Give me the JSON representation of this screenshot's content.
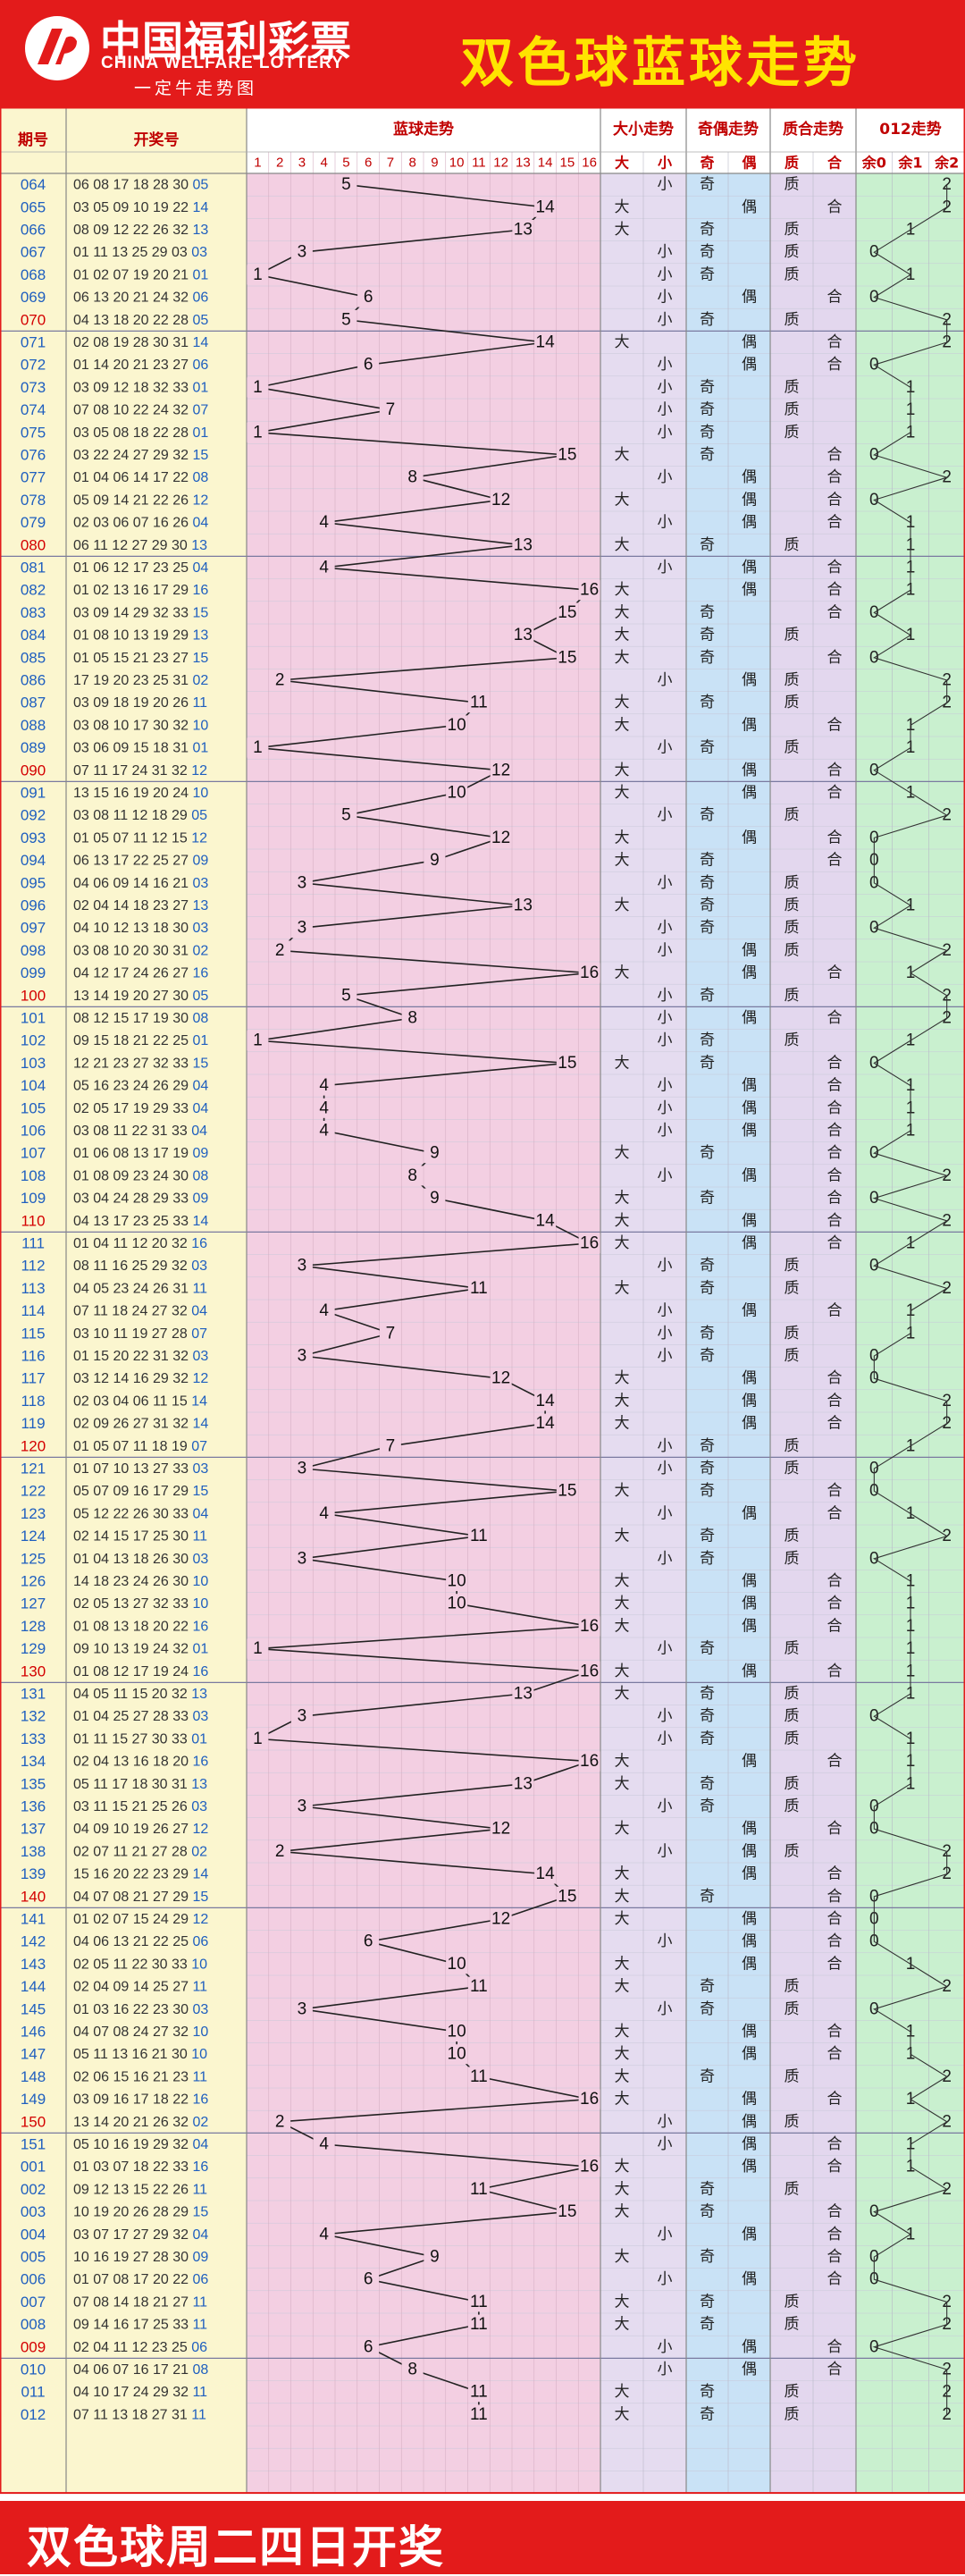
{
  "header": {
    "logo_cn": "中国福利彩票",
    "logo_en": "CHINA WELFARE LOTTERY",
    "logo_sub": "一定牛走势图",
    "title": "双色球蓝球走势"
  },
  "footer": {
    "text": "双色球周二四日开奖"
  },
  "colors": {
    "brand_red": "#e31b1b",
    "title_yellow": "#ffe400",
    "issue_blue": "#1f5fbf",
    "issue_red": "#d40000",
    "pink_bg": "#f3cfe2",
    "lavender_bg": "#e5dcf0",
    "blue_bg": "#c9e2f6",
    "purple_bg": "#e3d7ee",
    "green_bg": "#c9f0cf",
    "yellow_bg": "#fbf6cf"
  },
  "chart_data": {
    "type": "table",
    "columns": {
      "issue": "期号",
      "draw": "开奖号",
      "blue_trend": "蓝球走势",
      "size_trend": "大小走势",
      "parity_trend": "奇偶走势",
      "prime_trend": "质合走势",
      "mod3_trend": "012走势"
    },
    "blue_ball_numbers": [
      "1",
      "2",
      "3",
      "4",
      "5",
      "6",
      "7",
      "8",
      "9",
      "10",
      "11",
      "12",
      "13",
      "14",
      "15",
      "16"
    ],
    "sub_headers": {
      "size": [
        "大",
        "小"
      ],
      "parity": [
        "奇",
        "偶"
      ],
      "prime": [
        "质",
        "合"
      ],
      "mod3": [
        "余0",
        "余1",
        "余2"
      ]
    },
    "rows": [
      {
        "issue": "064",
        "reds": "06 08 17 18 28 30",
        "blue": 5
      },
      {
        "issue": "065",
        "reds": "03 05 09 10 19 22",
        "blue": 14
      },
      {
        "issue": "066",
        "reds": "08 09 12 22 26 32",
        "blue": 13
      },
      {
        "issue": "067",
        "reds": "01 11 13 25 29 03",
        "blue": 3
      },
      {
        "issue": "068",
        "reds": "01 02 07 19 20 21",
        "blue": 1
      },
      {
        "issue": "069",
        "reds": "06 13 20 21 24 32",
        "blue": 6
      },
      {
        "issue": "070",
        "reds": "04 13 18 20 22 28",
        "blue": 5
      },
      {
        "issue": "071",
        "reds": "02 08 19 28 30 31",
        "blue": 14
      },
      {
        "issue": "072",
        "reds": "01 14 20 21 23 27",
        "blue": 6
      },
      {
        "issue": "073",
        "reds": "03 09 12 18 32 33",
        "blue": 1
      },
      {
        "issue": "074",
        "reds": "07 08 10 22 24 32",
        "blue": 7
      },
      {
        "issue": "075",
        "reds": "03 05 08 18 22 28",
        "blue": 1
      },
      {
        "issue": "076",
        "reds": "03 22 24 27 29 32",
        "blue": 15
      },
      {
        "issue": "077",
        "reds": "01 04 06 14 17 22",
        "blue": 8
      },
      {
        "issue": "078",
        "reds": "05 09 14 21 22 26",
        "blue": 12
      },
      {
        "issue": "079",
        "reds": "02 03 06 07 16 26",
        "blue": 4
      },
      {
        "issue": "080",
        "reds": "06 11 12 27 29 30",
        "blue": 13
      },
      {
        "issue": "081",
        "reds": "01 06 12 17 23 25",
        "blue": 4
      },
      {
        "issue": "082",
        "reds": "01 02 13 16 17 29",
        "blue": 16
      },
      {
        "issue": "083",
        "reds": "03 09 14 29 32 33",
        "blue": 15
      },
      {
        "issue": "084",
        "reds": "01 08 10 13 19 29",
        "blue": 13
      },
      {
        "issue": "085",
        "reds": "01 05 15 21 23 27",
        "blue": 15
      },
      {
        "issue": "086",
        "reds": "17 19 20 23 25 31",
        "blue": 2
      },
      {
        "issue": "087",
        "reds": "03 09 18 19 20 26",
        "blue": 11
      },
      {
        "issue": "088",
        "reds": "03 08 10 17 30 32",
        "blue": 10
      },
      {
        "issue": "089",
        "reds": "03 06 09 15 18 31",
        "blue": 1
      },
      {
        "issue": "090",
        "reds": "07 11 17 24 31 32",
        "blue": 12
      },
      {
        "issue": "091",
        "reds": "13 15 16 19 20 24",
        "blue": 10
      },
      {
        "issue": "092",
        "reds": "03 08 11 12 18 29",
        "blue": 5
      },
      {
        "issue": "093",
        "reds": "01 05 07 11 12 15",
        "blue": 12
      },
      {
        "issue": "094",
        "reds": "06 13 17 22 25 27",
        "blue": 9
      },
      {
        "issue": "095",
        "reds": "04 06 09 14 16 21",
        "blue": 3
      },
      {
        "issue": "096",
        "reds": "02 04 14 18 23 27",
        "blue": 13
      },
      {
        "issue": "097",
        "reds": "04 10 12 13 18 30",
        "blue": 3
      },
      {
        "issue": "098",
        "reds": "03 08 10 20 30 31",
        "blue": 2
      },
      {
        "issue": "099",
        "reds": "04 12 17 24 26 27",
        "blue": 16
      },
      {
        "issue": "100",
        "reds": "13 14 19 20 27 30",
        "blue": 5
      },
      {
        "issue": "101",
        "reds": "08 12 15 17 19 30",
        "blue": 8
      },
      {
        "issue": "102",
        "reds": "09 15 18 21 22 25",
        "blue": 1
      },
      {
        "issue": "103",
        "reds": "12 21 23 27 32 33",
        "blue": 15
      },
      {
        "issue": "104",
        "reds": "05 16 23 24 26 29",
        "blue": 4
      },
      {
        "issue": "105",
        "reds": "02 05 17 19 29 33",
        "blue": 4
      },
      {
        "issue": "106",
        "reds": "03 08 11 22 31 33",
        "blue": 4
      },
      {
        "issue": "107",
        "reds": "01 06 08 13 17 19",
        "blue": 9
      },
      {
        "issue": "108",
        "reds": "01 08 09 23 24 30",
        "blue": 8
      },
      {
        "issue": "109",
        "reds": "03 04 24 28 29 33",
        "blue": 9
      },
      {
        "issue": "110",
        "reds": "04 13 17 23 25 33",
        "blue": 14
      },
      {
        "issue": "111",
        "reds": "01 04 11 12 20 32",
        "blue": 16
      },
      {
        "issue": "112",
        "reds": "08 11 16 25 29 32",
        "blue": 3
      },
      {
        "issue": "113",
        "reds": "04 05 23 24 26 31",
        "blue": 11
      },
      {
        "issue": "114",
        "reds": "07 11 18 24 27 32",
        "blue": 4
      },
      {
        "issue": "115",
        "reds": "03 10 11 19 27 28",
        "blue": 7
      },
      {
        "issue": "116",
        "reds": "01 15 20 22 31 32",
        "blue": 3
      },
      {
        "issue": "117",
        "reds": "03 12 14 16 29 32",
        "blue": 12
      },
      {
        "issue": "118",
        "reds": "02 03 04 06 11 15",
        "blue": 14
      },
      {
        "issue": "119",
        "reds": "02 09 26 27 31 32",
        "blue": 14
      },
      {
        "issue": "120",
        "reds": "01 05 07 11 18 19",
        "blue": 7
      },
      {
        "issue": "121",
        "reds": "01 07 10 13 27 33",
        "blue": 3
      },
      {
        "issue": "122",
        "reds": "05 07 09 16 17 29",
        "blue": 15
      },
      {
        "issue": "123",
        "reds": "05 12 22 26 30 33",
        "blue": 4
      },
      {
        "issue": "124",
        "reds": "02 14 15 17 25 30",
        "blue": 11
      },
      {
        "issue": "125",
        "reds": "01 04 13 18 26 30",
        "blue": 3
      },
      {
        "issue": "126",
        "reds": "14 18 23 24 26 30",
        "blue": 10
      },
      {
        "issue": "127",
        "reds": "02 05 13 27 32 33",
        "blue": 10
      },
      {
        "issue": "128",
        "reds": "01 08 13 18 20 22",
        "blue": 16
      },
      {
        "issue": "129",
        "reds": "09 10 13 19 24 32",
        "blue": 1
      },
      {
        "issue": "130",
        "reds": "01 08 12 17 19 24",
        "blue": 16
      },
      {
        "issue": "131",
        "reds": "04 05 11 15 20 32",
        "blue": 13
      },
      {
        "issue": "132",
        "reds": "01 04 25 27 28 33",
        "blue": 3
      },
      {
        "issue": "133",
        "reds": "01 11 15 27 30 33",
        "blue": 1
      },
      {
        "issue": "134",
        "reds": "02 04 13 16 18 20",
        "blue": 16
      },
      {
        "issue": "135",
        "reds": "05 11 17 18 30 31",
        "blue": 13
      },
      {
        "issue": "136",
        "reds": "03 11 15 21 25 26",
        "blue": 3
      },
      {
        "issue": "137",
        "reds": "04 09 10 19 26 27",
        "blue": 12
      },
      {
        "issue": "138",
        "reds": "02 07 11 21 27 28",
        "blue": 2
      },
      {
        "issue": "139",
        "reds": "15 16 20 22 23 29",
        "blue": 14
      },
      {
        "issue": "140",
        "reds": "04 07 08 21 27 29",
        "blue": 15
      },
      {
        "issue": "141",
        "reds": "01 02 07 15 24 29",
        "blue": 12
      },
      {
        "issue": "142",
        "reds": "04 06 13 21 22 25",
        "blue": 6
      },
      {
        "issue": "143",
        "reds": "02 05 11 22 30 33",
        "blue": 10
      },
      {
        "issue": "144",
        "reds": "02 04 09 14 25 27",
        "blue": 11
      },
      {
        "issue": "145",
        "reds": "01 03 16 22 23 30",
        "blue": 3
      },
      {
        "issue": "146",
        "reds": "04 07 08 24 27 32",
        "blue": 10
      },
      {
        "issue": "147",
        "reds": "05 11 13 16 21 30",
        "blue": 10
      },
      {
        "issue": "148",
        "reds": "02 06 15 16 21 23",
        "blue": 11
      },
      {
        "issue": "149",
        "reds": "03 09 16 17 18 22",
        "blue": 16
      },
      {
        "issue": "150",
        "reds": "13 14 20 21 26 32",
        "blue": 2
      },
      {
        "issue": "151",
        "reds": "05 10 16 19 29 32",
        "blue": 4
      },
      {
        "issue": "001",
        "reds": "01 03 07 18 22 33",
        "blue": 16
      },
      {
        "issue": "002",
        "reds": "09 12 13 15 22 26",
        "blue": 11
      },
      {
        "issue": "003",
        "reds": "10 19 20 26 28 29",
        "blue": 15
      },
      {
        "issue": "004",
        "reds": "03 07 17 27 29 32",
        "blue": 4
      },
      {
        "issue": "005",
        "reds": "10 16 19 27 28 30",
        "blue": 9
      },
      {
        "issue": "006",
        "reds": "01 07 08 17 20 22",
        "blue": 6
      },
      {
        "issue": "007",
        "reds": "07 08 14 18 21 27",
        "blue": 11
      },
      {
        "issue": "008",
        "reds": "09 14 16 17 25 33",
        "blue": 11
      },
      {
        "issue": "009",
        "reds": "02 04 11 12 23 25",
        "blue": 6
      },
      {
        "issue": "010",
        "reds": "04 06 07 16 17 21",
        "blue": 8
      },
      {
        "issue": "011",
        "reds": "04 10 17 24 29 32",
        "blue": 11
      },
      {
        "issue": "012",
        "reds": "07 11 13 18 27 31",
        "blue": 11
      }
    ]
  }
}
